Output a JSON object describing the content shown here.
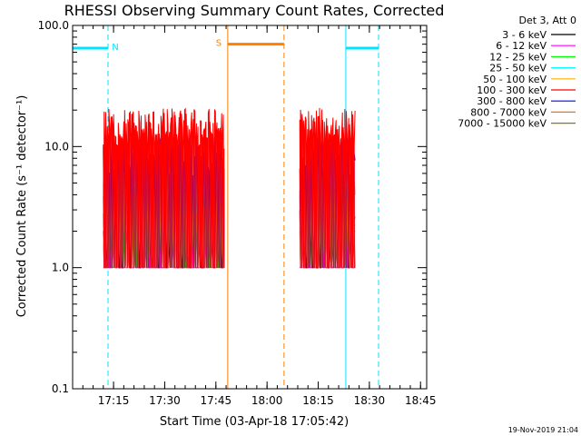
{
  "chart_data": {
    "type": "line",
    "title": "RHESSI Observing Summary Count Rates, Corrected",
    "xlabel": "Start Time (03-Apr-18 17:05:42)",
    "ylabel": "Corrected Count Rate (s⁻¹ detector⁻¹)",
    "yscale": "log",
    "ylim": [
      0.1,
      100.0
    ],
    "xlim_minutes": [
      17.05,
      18.78
    ],
    "yticks": [
      "0.1",
      "1.0",
      "10.0",
      "100.0"
    ],
    "xticks": [
      {
        "label": "17:15",
        "t": 17.25
      },
      {
        "label": "17:30",
        "t": 17.5
      },
      {
        "label": "17:45",
        "t": 17.75
      },
      {
        "label": "18:00",
        "t": 18.0
      },
      {
        "label": "18:15",
        "t": 18.25
      },
      {
        "label": "18:30",
        "t": 18.5
      },
      {
        "label": "18:45",
        "t": 18.75
      }
    ],
    "legend_header": "Det 3, Att 0",
    "legend_position": "top-right",
    "series": [
      {
        "name": "3 - 6 keV",
        "color": "#000000",
        "level": 2.5
      },
      {
        "name": "6 - 12 keV",
        "color": "#ff00ff",
        "level": 1.4
      },
      {
        "name": "12 - 25 keV",
        "color": "#00ff00",
        "level": 1.3
      },
      {
        "name": "25 - 50 keV",
        "color": "#00ffff",
        "level": 3.2
      },
      {
        "name": "50 - 100 keV",
        "color": "#ffb000",
        "level": 4.5
      },
      {
        "name": "100 - 300 keV",
        "color": "#ff0000",
        "level": 14.0
      },
      {
        "name": "300 - 800 keV",
        "color": "#0000ff",
        "level": 8.0
      },
      {
        "name": "800 - 7000 keV",
        "color": "#ff7000",
        "level": 3.5
      },
      {
        "name": "7000 - 15000 keV",
        "color": "#808000",
        "level": 3.0
      }
    ],
    "data_segments": [
      {
        "start": 17.2,
        "end": 17.79
      },
      {
        "start": 18.16,
        "end": 18.43
      }
    ],
    "flags": [
      {
        "label": "N",
        "color": "#00e5ff",
        "level": 65,
        "bar": [
          17.05,
          17.223
        ],
        "lines_solid": [
          17.05
        ],
        "lines_dashed": [
          17.223
        ]
      },
      {
        "label": "S",
        "color": "#ff7f00",
        "level": 70,
        "bar": [
          17.808,
          18.083
        ],
        "lines_solid": [
          17.808
        ],
        "lines_dashed": [
          18.083
        ]
      },
      {
        "label": "",
        "color": "#00e5ff",
        "level": 65,
        "bar": [
          18.385,
          18.545
        ],
        "lines_solid": [
          18.385
        ],
        "lines_dashed": [
          18.545
        ]
      }
    ]
  },
  "footer_timestamp": "19-Nov-2019 21:04"
}
